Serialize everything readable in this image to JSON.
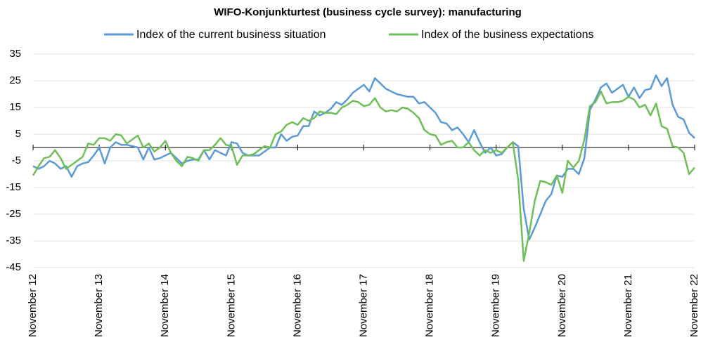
{
  "chart_data": {
    "type": "line",
    "title": "WIFO-Konjunkturtest (business cycle survey): manufacturing",
    "categories": [
      "November 12",
      null,
      null,
      null,
      null,
      null,
      null,
      null,
      null,
      null,
      null,
      null,
      "November 13",
      null,
      null,
      null,
      null,
      null,
      null,
      null,
      null,
      null,
      null,
      null,
      "November 14",
      null,
      null,
      null,
      null,
      null,
      null,
      null,
      null,
      null,
      null,
      null,
      "November 15",
      null,
      null,
      null,
      null,
      null,
      null,
      null,
      null,
      null,
      null,
      null,
      "November 16",
      null,
      null,
      null,
      null,
      null,
      null,
      null,
      null,
      null,
      null,
      null,
      "November 17",
      null,
      null,
      null,
      null,
      null,
      null,
      null,
      null,
      null,
      null,
      null,
      "November 18",
      null,
      null,
      null,
      null,
      null,
      null,
      null,
      null,
      null,
      null,
      null,
      "November 19",
      null,
      null,
      null,
      null,
      null,
      null,
      null,
      null,
      null,
      null,
      null,
      "November 20",
      null,
      null,
      null,
      null,
      null,
      null,
      null,
      null,
      null,
      null,
      null,
      "November 21",
      null,
      null,
      null,
      null,
      null,
      null,
      null,
      null,
      null,
      null,
      null,
      "November 22"
    ],
    "series": [
      {
        "name": "Index of the current business situation",
        "color": "#5b9bd5",
        "values": [
          -7,
          -8,
          -7,
          -5,
          -6,
          -8,
          -7,
          -11,
          -7,
          -6,
          -5.5,
          -3,
          0,
          -6,
          0,
          2,
          1,
          1,
          0.5,
          0,
          -4.5,
          0,
          -4.5,
          -4,
          -3,
          -2,
          -4,
          -6,
          -5,
          -4.5,
          -4.5,
          -1,
          -4.5,
          -1,
          -2,
          -3,
          2,
          1.5,
          -2,
          -3,
          -3,
          -3,
          -1.5,
          0,
          0,
          5,
          2.5,
          4,
          4.5,
          8,
          8,
          13.5,
          12,
          13,
          14.5,
          17,
          16,
          18,
          20.5,
          22,
          23.5,
          21,
          26,
          24,
          22,
          21,
          20,
          19.5,
          19,
          19,
          16.5,
          17,
          15,
          13,
          9.5,
          9,
          6.5,
          7.5,
          5,
          2,
          6.5,
          2,
          -2,
          0,
          -3,
          -2.5,
          0,
          2,
          0.5,
          -23,
          -34.5,
          -30,
          -25,
          -20,
          -17.5,
          -10.5,
          -11,
          -8,
          -8,
          -10,
          -4,
          14,
          18,
          22.5,
          24,
          20.5,
          22,
          23.5,
          19,
          22.5,
          18.5,
          21.5,
          22,
          27,
          23,
          26,
          16,
          11.5,
          10.5,
          5.5,
          3.5
        ]
      },
      {
        "name": "Index of the business expectations",
        "color": "#6fbf58",
        "values": [
          -10.5,
          -7,
          -4,
          -3.5,
          -1,
          -4,
          -8,
          -6.5,
          -5,
          -3.5,
          1.5,
          1,
          3.5,
          3.5,
          2.5,
          5,
          4.5,
          1.5,
          3,
          4.5,
          0,
          1.5,
          -1.5,
          0,
          2.5,
          -2,
          -5,
          -7,
          -3.5,
          -4,
          -5,
          -1,
          -1,
          1,
          3.5,
          1,
          0.5,
          -6.5,
          -3,
          -3,
          -2.5,
          -1,
          0.5,
          0,
          5,
          6,
          8.5,
          9.5,
          8.5,
          11,
          10,
          11,
          13.5,
          13,
          13,
          12.5,
          15,
          16,
          17.5,
          17,
          15.5,
          16,
          18.5,
          15,
          13.5,
          14,
          13.5,
          15,
          14.5,
          13,
          11,
          6.5,
          5,
          4.5,
          1,
          2,
          2.5,
          0,
          0,
          2,
          -1,
          -3,
          -1,
          -2,
          -1,
          -2,
          0,
          2,
          -12,
          -42.5,
          -32,
          -20,
          -12.5,
          -13,
          -14,
          -10.5,
          -17,
          -5,
          -7.5,
          -5,
          3,
          15.5,
          17,
          21,
          16.5,
          17,
          17,
          17.5,
          19,
          18,
          15,
          16,
          12,
          16.5,
          8,
          7,
          0.5,
          0,
          -2,
          -10,
          -7.5
        ]
      }
    ],
    "ylim": [
      -45,
      35
    ],
    "yticks": [
      35,
      25,
      15,
      5,
      -5,
      -15,
      -25,
      -35,
      -45
    ],
    "grid": true
  }
}
